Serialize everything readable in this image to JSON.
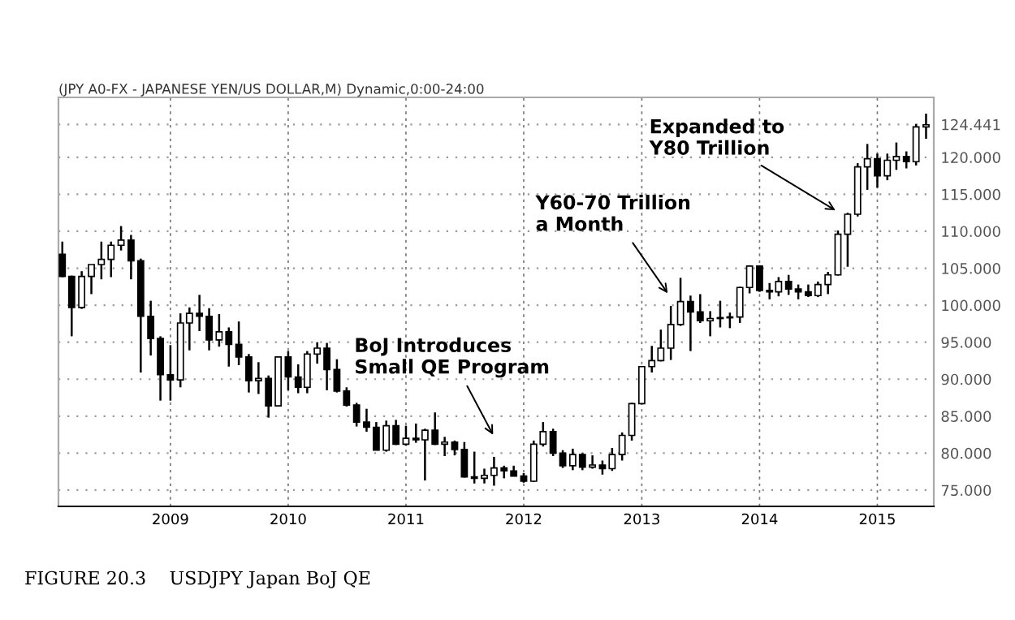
{
  "chart_data": {
    "type": "candlestick",
    "title": "(JPY A0-FX - JAPANESE YEN/US DOLLAR,M) Dynamic,0:00-24:00",
    "x": [
      "2008-02",
      "2008-03",
      "2008-04",
      "2008-05",
      "2008-06",
      "2008-07",
      "2008-08",
      "2008-09",
      "2008-10",
      "2008-11",
      "2008-12",
      "2009-01",
      "2009-02",
      "2009-03",
      "2009-04",
      "2009-05",
      "2009-06",
      "2009-07",
      "2009-08",
      "2009-09",
      "2009-10",
      "2009-11",
      "2009-12",
      "2010-01",
      "2010-02",
      "2010-03",
      "2010-04",
      "2010-05",
      "2010-06",
      "2010-07",
      "2010-08",
      "2010-09",
      "2010-10",
      "2010-11",
      "2010-12",
      "2011-01",
      "2011-02",
      "2011-03",
      "2011-04",
      "2011-05",
      "2011-06",
      "2011-07",
      "2011-08",
      "2011-09",
      "2011-10",
      "2011-11",
      "2011-12",
      "2012-01",
      "2012-02",
      "2012-03",
      "2012-04",
      "2012-05",
      "2012-06",
      "2012-07",
      "2012-08",
      "2012-09",
      "2012-10",
      "2012-11",
      "2012-12",
      "2013-01",
      "2013-02",
      "2013-03",
      "2013-04",
      "2013-05",
      "2013-06",
      "2013-07",
      "2013-08",
      "2013-09",
      "2013-10",
      "2013-11",
      "2013-12",
      "2014-01",
      "2014-02",
      "2014-03",
      "2014-04",
      "2014-05",
      "2014-06",
      "2014-07",
      "2014-08",
      "2014-09",
      "2014-10",
      "2014-11",
      "2014-12",
      "2015-01",
      "2015-02",
      "2015-03",
      "2015-04",
      "2015-05",
      "2015-06"
    ],
    "ohlc": [
      [
        106.9,
        108.6,
        103.8,
        103.9
      ],
      [
        103.9,
        104.0,
        95.8,
        99.7
      ],
      [
        99.7,
        104.6,
        99.5,
        103.9
      ],
      [
        103.9,
        105.5,
        101.5,
        105.5
      ],
      [
        105.5,
        108.6,
        103.5,
        106.2
      ],
      [
        106.2,
        108.6,
        103.8,
        108.1
      ],
      [
        108.1,
        110.7,
        107.4,
        108.8
      ],
      [
        108.8,
        109.5,
        103.5,
        106.0
      ],
      [
        106.0,
        106.3,
        90.9,
        98.5
      ],
      [
        98.5,
        100.6,
        93.2,
        95.5
      ],
      [
        95.5,
        95.8,
        87.1,
        90.6
      ],
      [
        90.6,
        94.6,
        87.1,
        89.9
      ],
      [
        89.9,
        98.9,
        88.9,
        97.6
      ],
      [
        97.6,
        99.7,
        93.9,
        98.9
      ],
      [
        98.9,
        101.4,
        96.5,
        98.5
      ],
      [
        98.5,
        99.6,
        93.9,
        95.3
      ],
      [
        95.3,
        98.8,
        94.4,
        96.4
      ],
      [
        96.4,
        97.0,
        91.7,
        94.7
      ],
      [
        94.7,
        97.8,
        91.9,
        93.0
      ],
      [
        93.0,
        93.4,
        88.2,
        89.8
      ],
      [
        89.8,
        92.3,
        88.0,
        90.1
      ],
      [
        90.1,
        90.5,
        84.8,
        86.4
      ],
      [
        86.4,
        93.0,
        86.3,
        93.0
      ],
      [
        93.0,
        93.8,
        88.5,
        90.3
      ],
      [
        90.3,
        92.0,
        88.1,
        88.9
      ],
      [
        88.9,
        93.8,
        88.1,
        93.4
      ],
      [
        93.4,
        95.0,
        92.1,
        94.2
      ],
      [
        94.2,
        94.9,
        88.5,
        91.3
      ],
      [
        91.3,
        92.7,
        88.2,
        88.4
      ],
      [
        88.4,
        88.9,
        86.3,
        86.5
      ],
      [
        86.5,
        86.8,
        83.6,
        84.2
      ],
      [
        84.2,
        86.0,
        82.9,
        83.5
      ],
      [
        83.5,
        84.2,
        80.4,
        80.4
      ],
      [
        80.4,
        84.4,
        80.2,
        83.7
      ],
      [
        83.7,
        84.5,
        81.1,
        81.2
      ],
      [
        81.2,
        83.7,
        81.0,
        82.0
      ],
      [
        82.0,
        84.0,
        81.4,
        81.8
      ],
      [
        81.8,
        83.3,
        76.3,
        83.1
      ],
      [
        83.1,
        85.5,
        81.1,
        81.2
      ],
      [
        81.2,
        82.2,
        79.6,
        81.5
      ],
      [
        81.5,
        81.7,
        79.7,
        80.5
      ],
      [
        80.5,
        81.5,
        76.7,
        76.8
      ],
      [
        76.8,
        80.2,
        75.9,
        76.6
      ],
      [
        76.6,
        77.9,
        75.9,
        77.0
      ],
      [
        77.0,
        79.5,
        75.6,
        78.0
      ],
      [
        78.0,
        78.3,
        76.6,
        77.6
      ],
      [
        77.6,
        78.3,
        76.9,
        76.9
      ],
      [
        76.9,
        77.3,
        76.0,
        76.2
      ],
      [
        76.2,
        81.7,
        76.1,
        81.2
      ],
      [
        81.2,
        84.2,
        80.9,
        82.9
      ],
      [
        82.9,
        83.3,
        79.6,
        80.0
      ],
      [
        80.0,
        80.4,
        78.0,
        78.3
      ],
      [
        78.3,
        80.6,
        77.7,
        79.8
      ],
      [
        79.8,
        80.0,
        77.7,
        78.1
      ],
      [
        78.1,
        79.7,
        77.9,
        78.4
      ],
      [
        78.4,
        79.0,
        77.1,
        77.9
      ],
      [
        77.9,
        80.7,
        77.6,
        79.8
      ],
      [
        79.8,
        82.8,
        79.0,
        82.4
      ],
      [
        82.4,
        86.8,
        81.7,
        86.7
      ],
      [
        86.7,
        91.7,
        86.6,
        91.7
      ],
      [
        91.7,
        94.5,
        90.9,
        92.5
      ],
      [
        92.5,
        96.7,
        92.4,
        94.2
      ],
      [
        94.2,
        99.9,
        92.6,
        97.4
      ],
      [
        97.4,
        103.7,
        97.2,
        100.5
      ],
      [
        100.5,
        101.3,
        93.8,
        99.1
      ],
      [
        99.1,
        101.5,
        97.6,
        97.9
      ],
      [
        97.9,
        99.2,
        95.8,
        98.2
      ],
      [
        98.2,
        100.6,
        97.0,
        98.3
      ],
      [
        98.3,
        99.0,
        96.9,
        98.4
      ],
      [
        98.4,
        102.5,
        97.6,
        102.4
      ],
      [
        102.4,
        105.4,
        101.6,
        105.3
      ],
      [
        105.3,
        105.4,
        101.8,
        102.0
      ],
      [
        102.0,
        103.0,
        100.8,
        101.8
      ],
      [
        101.8,
        103.8,
        101.2,
        103.2
      ],
      [
        103.2,
        104.1,
        101.4,
        102.2
      ],
      [
        102.2,
        102.8,
        100.8,
        101.8
      ],
      [
        101.8,
        102.8,
        101.1,
        101.3
      ],
      [
        101.3,
        103.2,
        101.1,
        102.8
      ],
      [
        102.8,
        104.5,
        101.5,
        104.1
      ],
      [
        104.1,
        110.1,
        104.0,
        109.6
      ],
      [
        109.6,
        112.5,
        105.2,
        112.3
      ],
      [
        112.3,
        119.2,
        112.0,
        118.7
      ],
      [
        118.7,
        121.8,
        115.6,
        119.8
      ],
      [
        119.8,
        120.5,
        115.9,
        117.5
      ],
      [
        117.5,
        120.5,
        116.9,
        119.6
      ],
      [
        119.6,
        122.0,
        118.3,
        120.1
      ],
      [
        120.1,
        120.8,
        118.5,
        119.4
      ],
      [
        119.4,
        124.5,
        118.9,
        124.1
      ],
      [
        124.1,
        125.9,
        122.5,
        124.4
      ]
    ],
    "xlim": [
      "2008-01-20",
      "2015-06-25"
    ],
    "xticks": [
      {
        "value": "2009-01",
        "label": "2009"
      },
      {
        "value": "2010-01",
        "label": "2010"
      },
      {
        "value": "2011-01",
        "label": "2011"
      },
      {
        "value": "2012-01",
        "label": "2012"
      },
      {
        "value": "2013-01",
        "label": "2013"
      },
      {
        "value": "2014-01",
        "label": "2014"
      },
      {
        "value": "2015-01",
        "label": "2015"
      }
    ],
    "ylim": [
      72.8,
      128.1
    ],
    "yticks": [
      {
        "value": 75,
        "label": "75.000"
      },
      {
        "value": 80,
        "label": "80.000"
      },
      {
        "value": 85,
        "label": "85.000"
      },
      {
        "value": 90,
        "label": "90.000"
      },
      {
        "value": 95,
        "label": "95.000"
      },
      {
        "value": 100,
        "label": "100.000"
      },
      {
        "value": 105,
        "label": "105.000"
      },
      {
        "value": 110,
        "label": "110.000"
      },
      {
        "value": 115,
        "label": "115.000"
      },
      {
        "value": 120,
        "label": "120.000"
      },
      {
        "value": 124.441,
        "label": "124.441"
      }
    ],
    "grid": true,
    "annotations": [
      "BoJ Introduces\nSmall QE Program",
      "Y60-70 Trillion\na Month",
      "Expanded to\nY80 Trillion",
      "FIGURE 20.3    USDJPY Japan BoJ QE"
    ]
  }
}
